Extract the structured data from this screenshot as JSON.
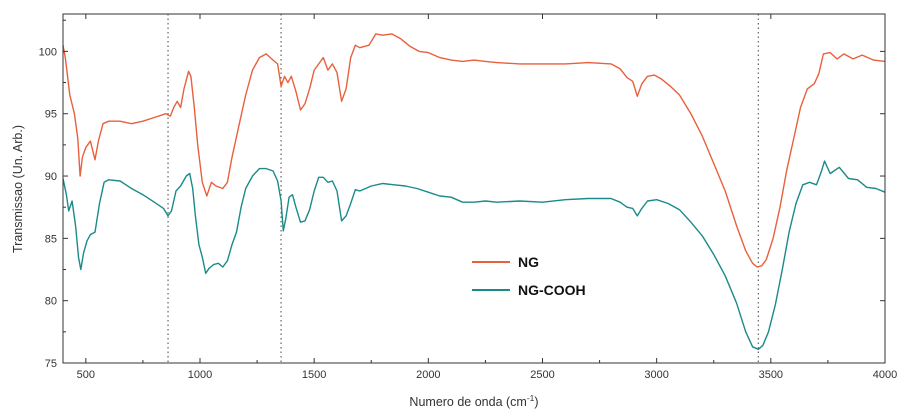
{
  "chart_data": {
    "type": "line",
    "xlabel": "Numero de onda (cm",
    "xlabel_sup": "-1",
    "xlabel_end": ")",
    "ylabel": "Transmissao (Un. Arb.)",
    "xlim": [
      400,
      4000
    ],
    "ylim": [
      75,
      103
    ],
    "x_ticks": [
      500,
      1000,
      1500,
      2000,
      2500,
      3000,
      3500,
      4000
    ],
    "y_ticks": [
      75,
      80,
      85,
      90,
      95,
      100
    ],
    "grid": false,
    "legend_position": "center",
    "reference_lines_x": [
      860,
      1355,
      3445
    ],
    "series": [
      {
        "name": "NG",
        "color": "#e8603c",
        "points": [
          [
            400,
            100.5
          ],
          [
            410,
            99.5
          ],
          [
            430,
            96.5
          ],
          [
            450,
            95.0
          ],
          [
            465,
            93.0
          ],
          [
            475,
            90.0
          ],
          [
            485,
            91.5
          ],
          [
            500,
            92.3
          ],
          [
            520,
            92.8
          ],
          [
            540,
            91.3
          ],
          [
            555,
            92.8
          ],
          [
            575,
            94.2
          ],
          [
            600,
            94.4
          ],
          [
            650,
            94.4
          ],
          [
            700,
            94.2
          ],
          [
            750,
            94.4
          ],
          [
            800,
            94.7
          ],
          [
            850,
            95.0
          ],
          [
            870,
            94.8
          ],
          [
            885,
            95.5
          ],
          [
            900,
            96.0
          ],
          [
            915,
            95.5
          ],
          [
            930,
            97.0
          ],
          [
            950,
            98.4
          ],
          [
            960,
            98.0
          ],
          [
            975,
            95.5
          ],
          [
            990,
            92.5
          ],
          [
            1010,
            89.5
          ],
          [
            1030,
            88.4
          ],
          [
            1050,
            89.5
          ],
          [
            1070,
            89.2
          ],
          [
            1100,
            89.0
          ],
          [
            1120,
            89.5
          ],
          [
            1140,
            91.5
          ],
          [
            1170,
            94.0
          ],
          [
            1200,
            96.5
          ],
          [
            1230,
            98.5
          ],
          [
            1260,
            99.5
          ],
          [
            1290,
            99.8
          ],
          [
            1320,
            99.3
          ],
          [
            1340,
            99.0
          ],
          [
            1355,
            97.2
          ],
          [
            1370,
            98.0
          ],
          [
            1385,
            97.5
          ],
          [
            1400,
            98.0
          ],
          [
            1420,
            96.8
          ],
          [
            1440,
            95.3
          ],
          [
            1460,
            95.8
          ],
          [
            1480,
            97.0
          ],
          [
            1500,
            98.5
          ],
          [
            1520,
            99.0
          ],
          [
            1540,
            99.5
          ],
          [
            1560,
            98.5
          ],
          [
            1580,
            99.0
          ],
          [
            1600,
            98.3
          ],
          [
            1620,
            96.0
          ],
          [
            1640,
            97.0
          ],
          [
            1660,
            99.5
          ],
          [
            1680,
            100.5
          ],
          [
            1700,
            100.3
          ],
          [
            1740,
            100.5
          ],
          [
            1770,
            101.4
          ],
          [
            1800,
            101.3
          ],
          [
            1840,
            101.4
          ],
          [
            1880,
            101.0
          ],
          [
            1920,
            100.4
          ],
          [
            1960,
            100.0
          ],
          [
            2000,
            99.9
          ],
          [
            2050,
            99.5
          ],
          [
            2100,
            99.3
          ],
          [
            2150,
            99.2
          ],
          [
            2200,
            99.3
          ],
          [
            2250,
            99.2
          ],
          [
            2300,
            99.1
          ],
          [
            2400,
            99.0
          ],
          [
            2500,
            99.0
          ],
          [
            2600,
            99.0
          ],
          [
            2700,
            99.1
          ],
          [
            2800,
            99.0
          ],
          [
            2840,
            98.6
          ],
          [
            2870,
            97.9
          ],
          [
            2895,
            97.6
          ],
          [
            2915,
            96.4
          ],
          [
            2935,
            97.4
          ],
          [
            2960,
            98.0
          ],
          [
            2990,
            98.1
          ],
          [
            3020,
            97.8
          ],
          [
            3060,
            97.2
          ],
          [
            3100,
            96.5
          ],
          [
            3150,
            95.0
          ],
          [
            3200,
            93.2
          ],
          [
            3250,
            91.0
          ],
          [
            3300,
            88.8
          ],
          [
            3350,
            86.0
          ],
          [
            3390,
            84.0
          ],
          [
            3420,
            83.0
          ],
          [
            3440,
            82.7
          ],
          [
            3460,
            82.8
          ],
          [
            3480,
            83.3
          ],
          [
            3510,
            85.0
          ],
          [
            3540,
            87.5
          ],
          [
            3570,
            90.5
          ],
          [
            3600,
            93.0
          ],
          [
            3630,
            95.5
          ],
          [
            3660,
            97.0
          ],
          [
            3690,
            97.4
          ],
          [
            3710,
            98.2
          ],
          [
            3730,
            99.8
          ],
          [
            3760,
            99.9
          ],
          [
            3790,
            99.4
          ],
          [
            3820,
            99.8
          ],
          [
            3860,
            99.4
          ],
          [
            3900,
            99.7
          ],
          [
            3950,
            99.3
          ],
          [
            4000,
            99.2
          ]
        ]
      },
      {
        "name": "NG-COOH",
        "color": "#1a8a8a",
        "points": [
          [
            400,
            89.8
          ],
          [
            415,
            88.5
          ],
          [
            425,
            87.2
          ],
          [
            440,
            88.0
          ],
          [
            455,
            86.0
          ],
          [
            468,
            83.5
          ],
          [
            478,
            82.5
          ],
          [
            490,
            83.8
          ],
          [
            505,
            84.8
          ],
          [
            520,
            85.3
          ],
          [
            540,
            85.5
          ],
          [
            560,
            87.8
          ],
          [
            580,
            89.5
          ],
          [
            600,
            89.7
          ],
          [
            650,
            89.6
          ],
          [
            700,
            89.0
          ],
          [
            750,
            88.5
          ],
          [
            800,
            87.9
          ],
          [
            840,
            87.4
          ],
          [
            860,
            86.8
          ],
          [
            875,
            87.2
          ],
          [
            895,
            88.8
          ],
          [
            915,
            89.2
          ],
          [
            940,
            90.0
          ],
          [
            955,
            90.2
          ],
          [
            968,
            89.0
          ],
          [
            980,
            86.8
          ],
          [
            995,
            84.5
          ],
          [
            1010,
            83.5
          ],
          [
            1025,
            82.2
          ],
          [
            1040,
            82.6
          ],
          [
            1060,
            82.9
          ],
          [
            1080,
            83.0
          ],
          [
            1100,
            82.7
          ],
          [
            1120,
            83.2
          ],
          [
            1140,
            84.5
          ],
          [
            1160,
            85.5
          ],
          [
            1180,
            87.5
          ],
          [
            1200,
            89.0
          ],
          [
            1230,
            90.0
          ],
          [
            1260,
            90.6
          ],
          [
            1290,
            90.6
          ],
          [
            1320,
            90.4
          ],
          [
            1340,
            89.6
          ],
          [
            1355,
            88.0
          ],
          [
            1365,
            85.6
          ],
          [
            1375,
            86.5
          ],
          [
            1390,
            88.3
          ],
          [
            1405,
            88.5
          ],
          [
            1420,
            87.5
          ],
          [
            1440,
            86.3
          ],
          [
            1460,
            86.4
          ],
          [
            1480,
            87.3
          ],
          [
            1500,
            88.8
          ],
          [
            1520,
            89.9
          ],
          [
            1540,
            89.9
          ],
          [
            1560,
            89.5
          ],
          [
            1580,
            89.6
          ],
          [
            1600,
            88.8
          ],
          [
            1620,
            86.4
          ],
          [
            1640,
            86.8
          ],
          [
            1660,
            87.8
          ],
          [
            1680,
            88.9
          ],
          [
            1700,
            88.8
          ],
          [
            1750,
            89.2
          ],
          [
            1800,
            89.4
          ],
          [
            1850,
            89.3
          ],
          [
            1900,
            89.2
          ],
          [
            1950,
            89.0
          ],
          [
            2000,
            88.7
          ],
          [
            2050,
            88.4
          ],
          [
            2100,
            88.3
          ],
          [
            2150,
            87.9
          ],
          [
            2200,
            87.9
          ],
          [
            2250,
            88.0
          ],
          [
            2300,
            87.9
          ],
          [
            2400,
            88.0
          ],
          [
            2500,
            87.9
          ],
          [
            2600,
            88.1
          ],
          [
            2700,
            88.2
          ],
          [
            2800,
            88.2
          ],
          [
            2840,
            87.9
          ],
          [
            2870,
            87.5
          ],
          [
            2895,
            87.4
          ],
          [
            2915,
            86.8
          ],
          [
            2935,
            87.4
          ],
          [
            2960,
            88.0
          ],
          [
            3000,
            88.1
          ],
          [
            3050,
            87.8
          ],
          [
            3100,
            87.3
          ],
          [
            3150,
            86.3
          ],
          [
            3200,
            85.2
          ],
          [
            3250,
            83.7
          ],
          [
            3300,
            82.0
          ],
          [
            3350,
            79.8
          ],
          [
            3390,
            77.5
          ],
          [
            3420,
            76.3
          ],
          [
            3445,
            76.1
          ],
          [
            3465,
            76.4
          ],
          [
            3490,
            77.5
          ],
          [
            3520,
            79.7
          ],
          [
            3550,
            82.5
          ],
          [
            3580,
            85.5
          ],
          [
            3610,
            87.8
          ],
          [
            3640,
            89.3
          ],
          [
            3670,
            89.5
          ],
          [
            3700,
            89.3
          ],
          [
            3720,
            90.3
          ],
          [
            3735,
            91.2
          ],
          [
            3760,
            90.2
          ],
          [
            3800,
            90.7
          ],
          [
            3840,
            89.8
          ],
          [
            3880,
            89.7
          ],
          [
            3920,
            89.1
          ],
          [
            3960,
            89.0
          ],
          [
            4000,
            88.7
          ]
        ]
      }
    ]
  }
}
